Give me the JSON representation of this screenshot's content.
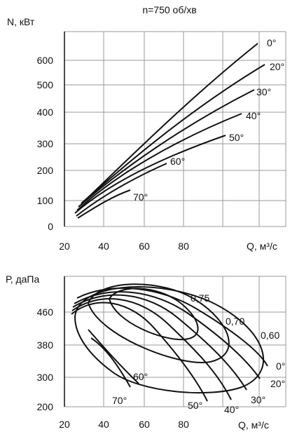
{
  "chart_data": [
    {
      "type": "line",
      "title": "n=750 об/хв",
      "xlabel": "Q, м³/с",
      "ylabel": "N, кВт",
      "xlim": [
        20,
        110
      ],
      "ylim": [
        0,
        700
      ],
      "grid": true,
      "x_ticks": [
        "20",
        "40",
        "60",
        "80"
      ],
      "y_ticks": [
        "0",
        "100",
        "200",
        "300",
        "400",
        "500",
        "600"
      ],
      "y_tick_values": [
        0,
        100,
        200,
        300,
        400,
        500,
        600
      ],
      "series": [
        {
          "name": "0°",
          "points": [
            [
              30,
              100
            ],
            [
              45,
              240
            ],
            [
              60,
              350
            ],
            [
              75,
              450
            ],
            [
              90,
              560
            ],
            [
              106,
              650
            ]
          ]
        },
        {
          "name": "20°",
          "points": [
            [
              29,
              90
            ],
            [
              45,
              210
            ],
            [
              60,
              320
            ],
            [
              75,
              410
            ],
            [
              90,
              505
            ],
            [
              108,
              580
            ]
          ]
        },
        {
          "name": "30°",
          "points": [
            [
              28,
              80
            ],
            [
              45,
              185
            ],
            [
              60,
              285
            ],
            [
              75,
              360
            ],
            [
              90,
              430
            ],
            [
              104,
              480
            ]
          ]
        },
        {
          "name": "40°",
          "points": [
            [
              27,
              65
            ],
            [
              40,
              150
            ],
            [
              55,
              220
            ],
            [
              70,
              290
            ],
            [
              85,
              350
            ],
            [
              98,
              395
            ]
          ]
        },
        {
          "name": "50°",
          "points": [
            [
              25,
              55
            ],
            [
              40,
              140
            ],
            [
              55,
              200
            ],
            [
              70,
              255
            ],
            [
              85,
              300
            ],
            [
              98,
              325
            ]
          ]
        },
        {
          "name": "60°",
          "points": [
            [
              26,
              45
            ],
            [
              35,
              90
            ],
            [
              45,
              140
            ],
            [
              55,
              185
            ],
            [
              63,
              215
            ]
          ]
        },
        {
          "name": "70°",
          "points": [
            [
              27,
              35
            ],
            [
              35,
              60
            ],
            [
              45,
              90
            ],
            [
              53,
              115
            ]
          ]
        }
      ]
    },
    {
      "type": "line",
      "title": "",
      "xlabel": "Q, м³/с",
      "ylabel": "Р, даПа",
      "xlim": [
        20,
        110
      ],
      "ylim": [
        200,
        520
      ],
      "grid": true,
      "x_ticks": [
        "20",
        "40",
        "60",
        "80"
      ],
      "y_ticks": [
        "200",
        "300",
        "380",
        "460"
      ],
      "y_tick_values": [
        200,
        300,
        380,
        460
      ],
      "series": [
        {
          "name": "0°",
          "points": [
            [
              28,
              480
            ],
            [
              45,
              490
            ],
            [
              62,
              482
            ],
            [
              78,
              440
            ],
            [
              95,
              385
            ],
            [
              107,
              320
            ]
          ]
        },
        {
          "name": "20°",
          "points": [
            [
              27,
              470
            ],
            [
              42,
              485
            ],
            [
              58,
              480
            ],
            [
              75,
              430
            ],
            [
              92,
              360
            ],
            [
              104,
              295
            ]
          ]
        },
        {
          "name": "30°",
          "points": [
            [
              25,
              468
            ],
            [
              40,
              482
            ],
            [
              55,
              472
            ],
            [
              70,
              410
            ],
            [
              85,
              340
            ],
            [
              98,
              270
            ]
          ]
        },
        {
          "name": "40°",
          "points": [
            [
              24,
              463
            ],
            [
              38,
              478
            ],
            [
              52,
              466
            ],
            [
              66,
              400
            ],
            [
              80,
              330
            ],
            [
              92,
              255
            ]
          ]
        },
        {
          "name": "50°",
          "points": [
            [
              23,
              458
            ],
            [
              35,
              472
            ],
            [
              48,
              458
            ],
            [
              60,
              390
            ],
            [
              72,
              320
            ],
            [
              83,
              250
            ]
          ]
        },
        {
          "name": "60°",
          "points": [
            [
              32,
              350
            ],
            [
              40,
              320
            ],
            [
              48,
              300
            ],
            [
              54,
              285
            ]
          ]
        },
        {
          "name": "70°",
          "points": [
            [
              34,
              420
            ],
            [
              40,
              390
            ],
            [
              45,
              340
            ],
            [
              52,
              270
            ]
          ]
        }
      ],
      "efficiency_labels": [
        "0,75",
        "0,70",
        "0,60"
      ]
    }
  ]
}
